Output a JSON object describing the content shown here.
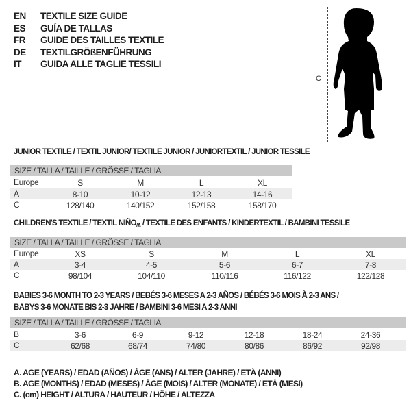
{
  "header": {
    "lines": [
      {
        "code": "EN",
        "text": "TEXTILE SIZE GUIDE"
      },
      {
        "code": "ES",
        "text": "GUÍA DE TALLAS"
      },
      {
        "code": "FR",
        "text": "GUIDE DES TAILLES TEXTILE"
      },
      {
        "code": "DE",
        "text": "TEXTILGRÖßENFÜHRUNG"
      },
      {
        "code": "IT",
        "text": "GUIDA ALLE TAGLIE TESSILI"
      }
    ]
  },
  "figure": {
    "measure_label": "C",
    "icon": "child-silhouette-icon"
  },
  "tables": [
    {
      "title": "JUNIOR TEXTILE / TEXTIL JUNIOR/ TEXTILE JUNIOR / JUNIORTEXTIL / JUNIOR TESSILE",
      "header": "SIZE / TALLA / TAILLE / GRÖSSE / TAGLIA",
      "rows": [
        {
          "label": "Europe",
          "values": [
            "S",
            "M",
            "L",
            "XL"
          ]
        },
        {
          "label": "A",
          "values": [
            "8-10",
            "10-12",
            "12-13",
            "14-16"
          ]
        },
        {
          "label": "C",
          "values": [
            "128/140",
            "140/152",
            "152/158",
            "158/170"
          ]
        }
      ]
    },
    {
      "title_pre": "CHILDREN'S TEXTILE / TEXTIL NIÑO",
      "title_sub": "/A",
      "title_post": " / TEXTILE DES ENFANTS / KINDERTEXTIL / BAMBINI TESSILE",
      "header": "SIZE / TALLA / TAILLE / GRÖSSE / TAGLIA",
      "rows": [
        {
          "label": "Europe",
          "values": [
            "XS",
            "S",
            "M",
            "L",
            "XL"
          ]
        },
        {
          "label": "A",
          "values": [
            "3-4",
            "4-5",
            "5-6",
            "6-7",
            "7-8"
          ]
        },
        {
          "label": "C",
          "values": [
            "98/104",
            "104/110",
            "110/116",
            "116/122",
            "122/128"
          ]
        }
      ]
    },
    {
      "title_line1": "BABIES 3-6 MONTH TO 2-3 YEARS / BEBÉS 3-6 MESES A 2-3 AÑOS / BÉBÉS 3-6 MOIS À 2-3 ANS /",
      "title_line2": "BABYS 3-6 MONATE BIS 2-3 JAHRE / BAMBINI 3-6 MESI A 2-3 ANNI",
      "header": "SIZE / TALLA / TAILLE / GRÖSSE / TAGLIA",
      "rows": [
        {
          "label": "B",
          "values": [
            "3-6",
            "6-9",
            "9-12",
            "12-18",
            "18-24",
            "24-36"
          ]
        },
        {
          "label": "C",
          "values": [
            "62/68",
            "68/74",
            "74/80",
            "80/86",
            "86/92",
            "92/98"
          ]
        }
      ]
    }
  ],
  "legend": [
    "A. AGE (YEARS) / EDAD (AÑOS) / ÂGE (ANS) / ALTER (JAHRE) / ETÀ (ANNI)",
    "B. AGE (MONTHS) / EDAD (MESES) / ÂGE (MOIS) / ALTER (MONATE) / ETÀ (MESI)",
    "C. (cm) HEIGHT / ALTURA / HAUTEUR / HÖHE / ALTEZZA"
  ]
}
